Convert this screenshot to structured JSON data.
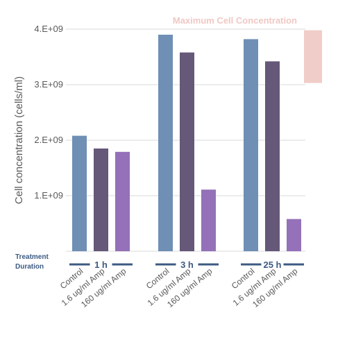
{
  "chart_data": {
    "type": "bar",
    "ylabel": "Cell concentration (cells/ml)",
    "ylim": [
      0,
      4000000000
    ],
    "yticks": [
      {
        "value": 1000000000,
        "label": "1.E+09"
      },
      {
        "value": 2000000000,
        "label": "2.E+09"
      },
      {
        "value": 3000000000,
        "label": "3.E+09"
      },
      {
        "value": 4000000000,
        "label": "4.E+09"
      }
    ],
    "grid": true,
    "groups_title": "Treatment Duration",
    "groups": [
      {
        "duration": "1 h",
        "categories": [
          "Control",
          "1.6 ug/ml Amp",
          "160 ug/ml Amp"
        ],
        "values": [
          2080000000,
          1850000000,
          1790000000
        ]
      },
      {
        "duration": "3 h",
        "categories": [
          "Control",
          "1.6 ug/ml Amp",
          "160 ug/ml Amp"
        ],
        "values": [
          3900000000,
          3580000000,
          1110000000
        ]
      },
      {
        "duration": "25 h",
        "categories": [
          "Control",
          "1.6 ug/ml Amp",
          "160 ug/ml Amp"
        ],
        "values": [
          3820000000,
          3420000000,
          580000000
        ]
      }
    ],
    "colors": [
      "#6f8fb5",
      "#655878",
      "#9471b8"
    ],
    "max_band": {
      "label": "Maximum Cell Concentration",
      "range": [
        3030000000,
        3980000000
      ],
      "color": "#f0cdc9"
    }
  }
}
